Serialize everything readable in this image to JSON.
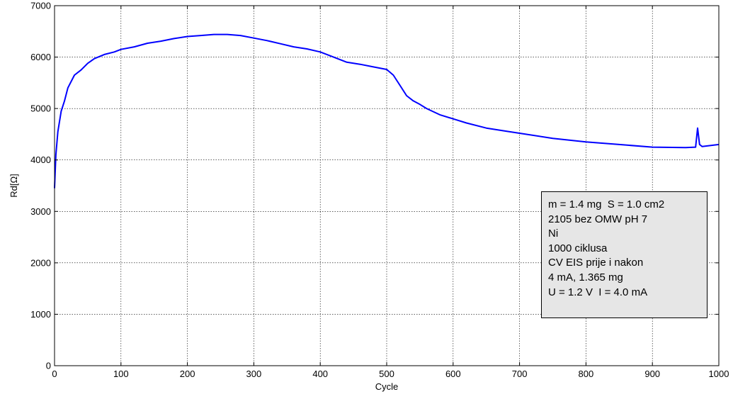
{
  "chart_data": {
    "type": "line",
    "xlabel": "Cycle",
    "ylabel": "Rd[Ω]",
    "xlim": [
      0,
      1000
    ],
    "ylim": [
      0,
      7000
    ],
    "xticks": [
      0,
      100,
      200,
      300,
      400,
      500,
      600,
      700,
      800,
      900,
      1000
    ],
    "yticks": [
      0,
      1000,
      2000,
      3000,
      4000,
      5000,
      6000,
      7000
    ],
    "grid": true,
    "series": [
      {
        "color": "#0000ff",
        "x": [
          0,
          2,
          5,
          10,
          15,
          20,
          30,
          40,
          50,
          60,
          75,
          90,
          100,
          120,
          140,
          160,
          180,
          200,
          220,
          240,
          260,
          280,
          300,
          320,
          340,
          360,
          380,
          400,
          420,
          440,
          460,
          480,
          500,
          510,
          520,
          530,
          540,
          550,
          560,
          580,
          600,
          620,
          650,
          680,
          700,
          750,
          800,
          850,
          900,
          950,
          965,
          968,
          971,
          975,
          1000
        ],
        "y": [
          3450,
          4100,
          4550,
          4950,
          5150,
          5400,
          5650,
          5750,
          5880,
          5970,
          6050,
          6100,
          6150,
          6200,
          6270,
          6310,
          6360,
          6400,
          6420,
          6440,
          6440,
          6420,
          6370,
          6320,
          6260,
          6200,
          6160,
          6100,
          6000,
          5900,
          5860,
          5810,
          5760,
          5650,
          5450,
          5250,
          5150,
          5080,
          5000,
          4880,
          4800,
          4720,
          4620,
          4560,
          4520,
          4420,
          4350,
          4300,
          4250,
          4240,
          4250,
          4620,
          4300,
          4260,
          4300
        ]
      }
    ]
  },
  "legend": {
    "lines": [
      "m = 1.4 mg  S = 1.0 cm2",
      "2105 bez OMW pH 7",
      "Ni",
      "1000 ciklusa",
      "CV EIS prije i nakon",
      "4 mA, 1.365 mg",
      "U = 1.2 V  I = 4.0 mA"
    ]
  },
  "colors": {
    "line": "#0000ff",
    "legend_background": "#e6e6e6",
    "grid": "#000000"
  }
}
